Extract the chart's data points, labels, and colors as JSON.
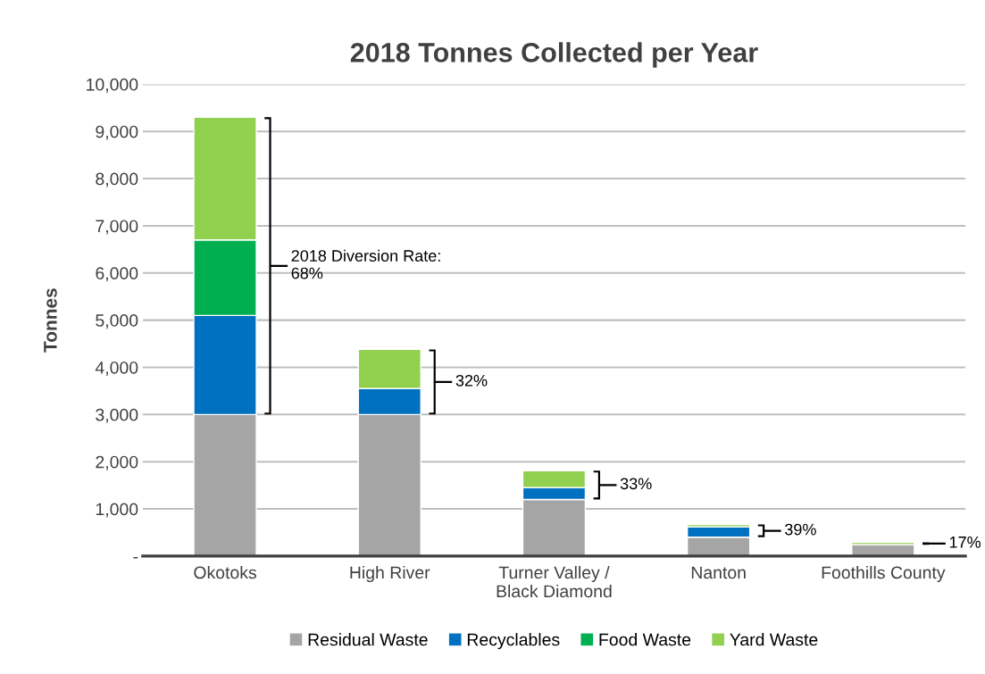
{
  "chart_data": {
    "type": "bar",
    "title": "2018 Tonnes Collected per Year",
    "ylabel": "Tonnes",
    "stacked": true,
    "categories": [
      "Okotoks",
      "High River",
      "Turner Valley /\nBlack Diamond",
      "Nanton",
      "Foothills County"
    ],
    "series": [
      {
        "name": "Residual Waste",
        "color": "#a5a5a5",
        "values": [
          3000,
          3000,
          1200,
          400,
          240
        ]
      },
      {
        "name": "Recyclables",
        "color": "#0070c0",
        "values": [
          2100,
          550,
          250,
          220,
          0
        ]
      },
      {
        "name": "Food Waste",
        "color": "#00b050",
        "values": [
          1600,
          0,
          0,
          0,
          0
        ]
      },
      {
        "name": "Yard Waste",
        "color": "#92d050",
        "values": [
          2600,
          830,
          360,
          50,
          50
        ]
      }
    ],
    "ylim": [
      0,
      10000
    ],
    "yticks": [
      {
        "value": 0,
        "label": "-"
      },
      {
        "value": 1000,
        "label": "1,000"
      },
      {
        "value": 2000,
        "label": "2,000"
      },
      {
        "value": 3000,
        "label": "3,000"
      },
      {
        "value": 4000,
        "label": "4,000"
      },
      {
        "value": 5000,
        "label": "5,000"
      },
      {
        "value": 6000,
        "label": "6,000"
      },
      {
        "value": 7000,
        "label": "7,000"
      },
      {
        "value": 8000,
        "label": "8,000"
      },
      {
        "value": 9000,
        "label": "9,000"
      },
      {
        "value": 10000,
        "label": "10,000"
      }
    ],
    "grid": "y",
    "legend": "bottom",
    "annotations": [
      "2018 Diversion Rate:\n68%",
      "32%",
      "33%",
      "39%",
      "17%"
    ]
  }
}
